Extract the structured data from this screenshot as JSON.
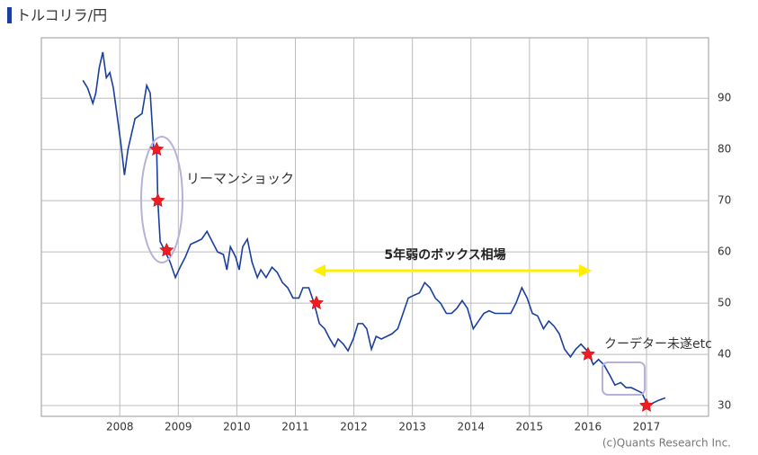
{
  "chart_data": {
    "type": "line",
    "title": "トルコリラ/円",
    "annotations": [
      "リーマンショック",
      "5年弱のボックス相場",
      "クーデター未遂etc"
    ],
    "credit": "(c)Quants Research Inc.",
    "xlim": [
      2006.66,
      2018.06
    ],
    "ylim": [
      27.9,
      101.8
    ],
    "xticks": [
      2008,
      2009,
      2010,
      2011,
      2012,
      2013,
      2014,
      2015,
      2016,
      2017
    ],
    "yticks": [
      30,
      40,
      50,
      60,
      70,
      80,
      90
    ],
    "grid": true,
    "series": [
      {
        "color": "#1a3f9e",
        "x": [
          2007.37,
          2007.45,
          2007.54,
          2007.59,
          2007.65,
          2007.71,
          2007.77,
          2007.83,
          2007.89,
          2007.95,
          2008.02,
          2008.08,
          2008.14,
          2008.2,
          2008.26,
          2008.32,
          2008.38,
          2008.46,
          2008.52,
          2008.58,
          2008.63,
          2008.65,
          2008.69,
          2008.78,
          2008.86,
          2008.95,
          2009.03,
          2009.12,
          2009.21,
          2009.31,
          2009.4,
          2009.49,
          2009.58,
          2009.67,
          2009.77,
          2009.83,
          2009.89,
          2009.98,
          2010.04,
          2010.1,
          2010.18,
          2010.26,
          2010.35,
          2010.41,
          2010.5,
          2010.6,
          2010.69,
          2010.78,
          2010.87,
          2010.96,
          2011.06,
          2011.13,
          2011.23,
          2011.32,
          2011.41,
          2011.5,
          2011.59,
          2011.67,
          2011.73,
          2011.82,
          2011.9,
          2011.99,
          2012.07,
          2012.15,
          2012.22,
          2012.3,
          2012.38,
          2012.47,
          2012.56,
          2012.65,
          2012.75,
          2012.84,
          2012.93,
          2013.02,
          2013.12,
          2013.21,
          2013.3,
          2013.39,
          2013.48,
          2013.58,
          2013.67,
          2013.76,
          2013.85,
          2013.94,
          2014.04,
          2014.13,
          2014.22,
          2014.31,
          2014.41,
          2014.5,
          2014.59,
          2014.68,
          2014.77,
          2014.87,
          2014.96,
          2015.05,
          2015.14,
          2015.24,
          2015.33,
          2015.42,
          2015.51,
          2015.6,
          2015.7,
          2015.79,
          2015.88,
          2016.0,
          2016.09,
          2016.18,
          2016.27,
          2016.37,
          2016.46,
          2016.56,
          2016.65,
          2016.74,
          2016.83,
          2016.92,
          2017.02,
          2017.11,
          2017.2,
          2017.32
        ],
        "values": [
          93.5,
          92,
          89,
          91,
          96,
          99,
          94,
          95,
          92,
          87,
          81,
          75,
          80,
          83,
          86,
          86.5,
          87,
          92.5,
          91,
          80,
          80,
          70,
          62,
          60,
          58,
          55,
          57,
          59,
          61.5,
          62,
          62.5,
          64,
          62,
          60,
          59.5,
          56.5,
          61,
          59,
          56.5,
          61,
          62.5,
          58,
          55,
          56.5,
          55,
          57,
          56,
          54,
          53,
          51,
          51,
          53,
          53,
          50,
          46,
          45,
          43,
          41.5,
          43,
          42,
          40.7,
          43,
          46,
          46,
          45,
          41,
          43.5,
          43,
          43.5,
          44,
          45,
          48,
          51,
          51.5,
          52,
          54,
          53,
          51,
          50,
          48,
          48,
          49,
          50.5,
          49,
          45,
          46.5,
          48,
          48.5,
          48,
          48,
          48,
          48,
          50,
          53,
          51,
          48,
          47.5,
          45,
          46.5,
          45.5,
          44,
          41,
          39.5,
          41,
          42,
          40.5,
          38,
          39,
          38,
          36,
          34,
          34.5,
          33.5,
          33.5,
          33,
          32.5,
          30,
          30.5,
          31,
          31.5
        ]
      }
    ],
    "highlights": [
      {
        "x": 2008.63,
        "y": 80
      },
      {
        "x": 2008.65,
        "y": 70
      },
      {
        "x": 2008.8,
        "y": 60.3
      },
      {
        "x": 2011.36,
        "y": 50
      },
      {
        "x": 2016.0,
        "y": 40
      },
      {
        "x": 2017.0,
        "y": 30
      }
    ]
  }
}
